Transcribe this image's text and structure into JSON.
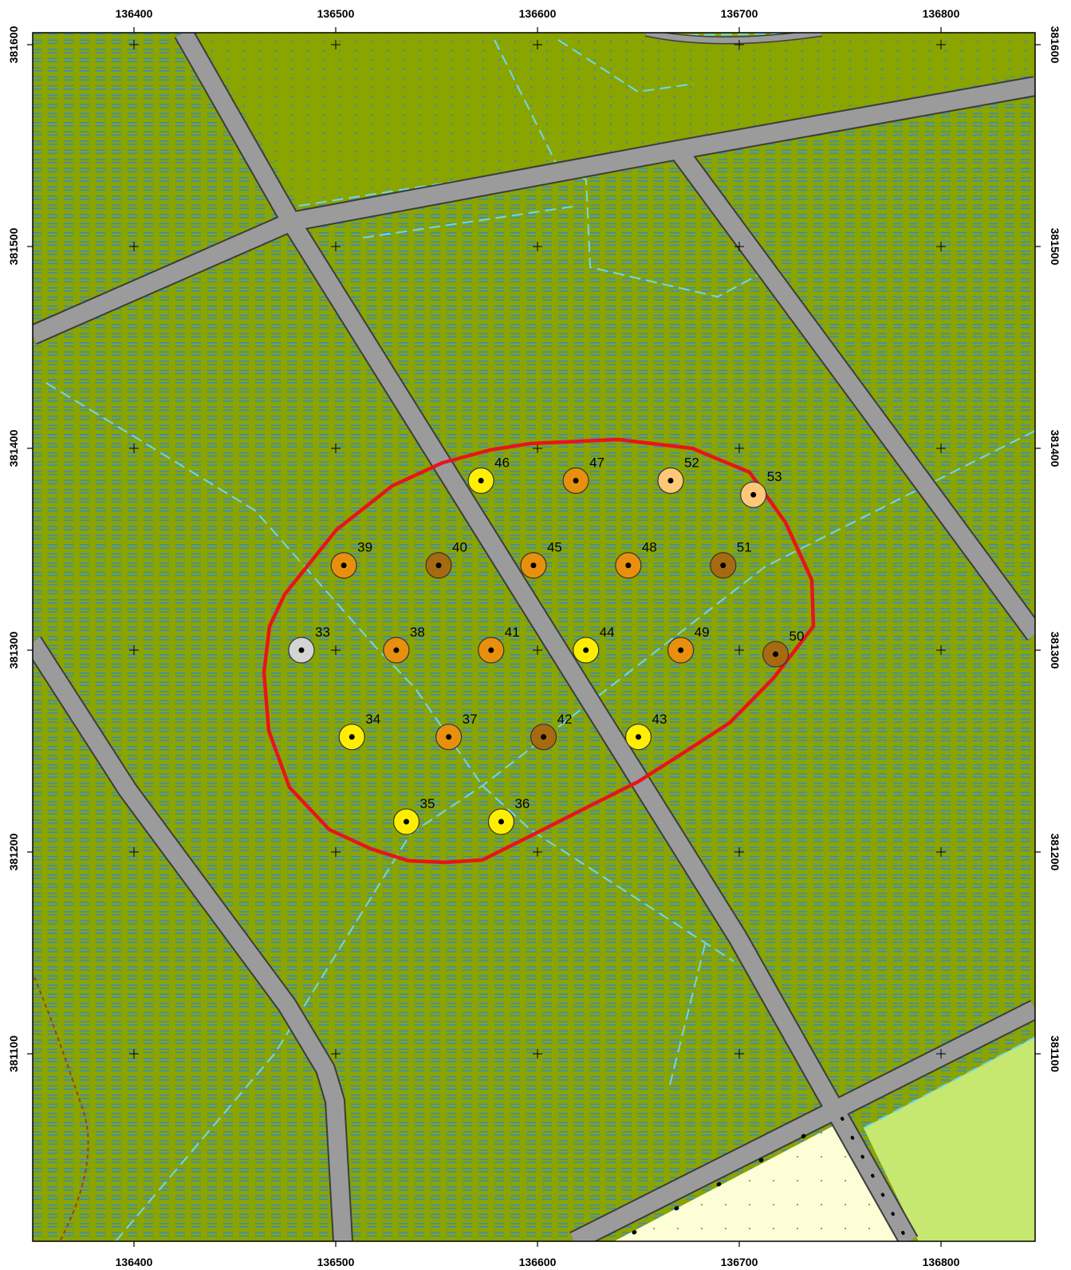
{
  "axes": {
    "x_ticks": [
      "136400",
      "136500",
      "136600",
      "136700",
      "136800"
    ],
    "y_ticks": [
      "381600",
      "381500",
      "381400",
      "381300",
      "381200",
      "381100"
    ],
    "x_values": [
      136400,
      136500,
      136600,
      136700,
      136800
    ],
    "y_values": [
      381600,
      381500,
      381400,
      381300,
      381200,
      381100
    ],
    "x_range": [
      136350,
      136850
    ],
    "y_range": [
      381000,
      381606
    ]
  },
  "colors": {
    "field": "#8aa400",
    "hatch": "#3a8cbf",
    "road": "#9b9b9b",
    "road_edge": "#3c3c3c",
    "ditch": "#6ed8ee",
    "boundary": "#e8141a",
    "cream_area": "#fdfdd6",
    "lightgreen_area": "#c6e870",
    "brown_dash": "#a0401a"
  },
  "points": [
    {
      "label": "33",
      "x": 136483,
      "y": 381300,
      "color": "#d4d4d4"
    },
    {
      "label": "34",
      "x": 136508,
      "y": 381257,
      "color": "#ffee00"
    },
    {
      "label": "35",
      "x": 136535,
      "y": 381215,
      "color": "#ffee00"
    },
    {
      "label": "36",
      "x": 136582,
      "y": 381215,
      "color": "#ffee00"
    },
    {
      "label": "37",
      "x": 136556,
      "y": 381257,
      "color": "#e8900e"
    },
    {
      "label": "38",
      "x": 136530,
      "y": 381300,
      "color": "#e8900e"
    },
    {
      "label": "39",
      "x": 136504,
      "y": 381342,
      "color": "#e8900e"
    },
    {
      "label": "40",
      "x": 136551,
      "y": 381342,
      "color": "#a86a10"
    },
    {
      "label": "41",
      "x": 136577,
      "y": 381300,
      "color": "#e8900e"
    },
    {
      "label": "42",
      "x": 136603,
      "y": 381257,
      "color": "#a86a10"
    },
    {
      "label": "43",
      "x": 136650,
      "y": 381257,
      "color": "#ffee00"
    },
    {
      "label": "44",
      "x": 136624,
      "y": 381300,
      "color": "#ffee00"
    },
    {
      "label": "45",
      "x": 136598,
      "y": 381342,
      "color": "#e8900e"
    },
    {
      "label": "46",
      "x": 136572,
      "y": 381384,
      "color": "#ffee00"
    },
    {
      "label": "47",
      "x": 136619,
      "y": 381384,
      "color": "#e8900e"
    },
    {
      "label": "48",
      "x": 136645,
      "y": 381342,
      "color": "#e8900e"
    },
    {
      "label": "49",
      "x": 136671,
      "y": 381300,
      "color": "#e8900e"
    },
    {
      "label": "50",
      "x": 136718,
      "y": 381298,
      "color": "#a86a10"
    },
    {
      "label": "51",
      "x": 136692,
      "y": 381342,
      "color": "#a86a10"
    },
    {
      "label": "52",
      "x": 136666,
      "y": 381384,
      "color": "#ffc878"
    },
    {
      "label": "53",
      "x": 136707,
      "y": 381377,
      "color": "#ffc878"
    }
  ]
}
